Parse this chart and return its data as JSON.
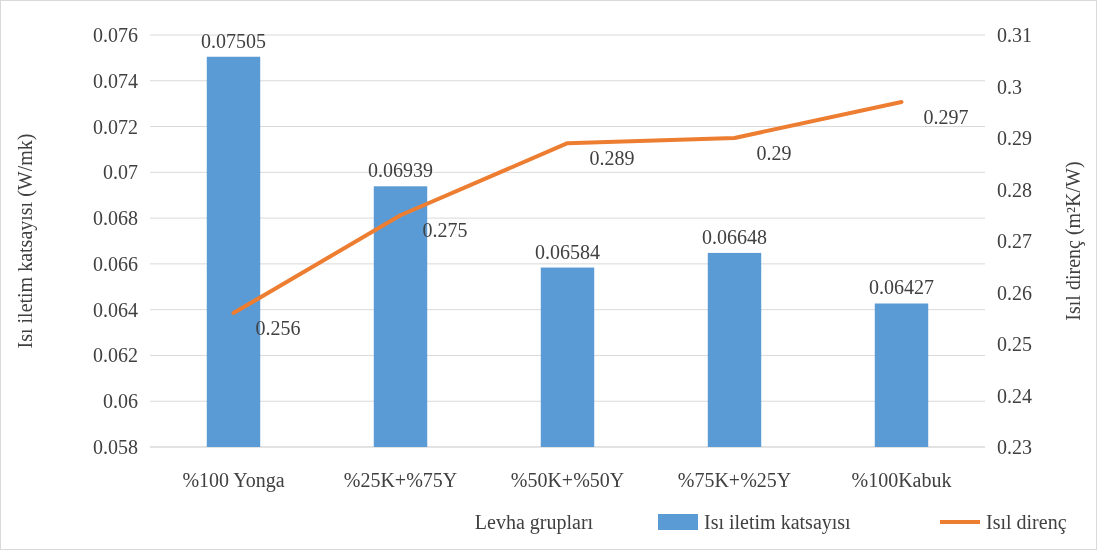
{
  "chart_data": {
    "type": "bar",
    "categories": [
      "%100 Yonga",
      "%25K+%75Y",
      "%50K+%50Y",
      "%75K+%25Y",
      "%100Kabuk"
    ],
    "xlabel": "Levha grupları",
    "ylabel": "Isı iletim katsayısı (W/mk)",
    "y2label": "Isıl direnç (m²K/W)",
    "series": [
      {
        "name": "Isı iletim katsayısı",
        "color": "#5b9bd5",
        "values": [
          0.07505,
          0.06939,
          0.06584,
          0.06648,
          0.06427
        ]
      },
      {
        "name": "Isıl direnç",
        "type": "line",
        "axis": "y2",
        "color": "#ed7d31",
        "values": [
          0.256,
          0.275,
          0.289,
          0.29,
          0.297
        ]
      }
    ],
    "ylim": [
      0.058,
      0.076
    ],
    "yticks": [
      0.058,
      0.06,
      0.062,
      0.064,
      0.066,
      0.068,
      0.07,
      0.072,
      0.074,
      0.076
    ],
    "y2lim": [
      0.23,
      0.31
    ],
    "y2ticks": [
      0.23,
      0.24,
      0.25,
      0.26,
      0.27,
      0.28,
      0.29,
      0.3,
      0.31
    ],
    "grid": "y",
    "legend": "bottom",
    "data_labels": true,
    "marker": "none",
    "line_style": "solid"
  }
}
